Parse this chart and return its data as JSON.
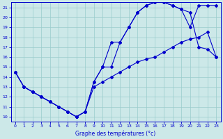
{
  "xlabel": "Graphe des températures (°c)",
  "xlim": [
    -0.5,
    23.5
  ],
  "ylim": [
    9.5,
    21.5
  ],
  "yticks": [
    10,
    11,
    12,
    13,
    14,
    15,
    16,
    17,
    18,
    19,
    20,
    21
  ],
  "xticks": [
    0,
    1,
    2,
    3,
    4,
    5,
    6,
    7,
    8,
    9,
    10,
    11,
    12,
    13,
    14,
    15,
    16,
    17,
    18,
    19,
    20,
    21,
    22,
    23
  ],
  "line_color": "#0000cc",
  "bg_color": "#cce8e8",
  "grid_color": "#99cccc",
  "series": {
    "curve1_x": [
      0,
      1,
      2,
      3,
      4,
      5,
      6,
      7,
      8,
      9,
      10,
      11,
      12,
      13,
      14,
      15,
      16,
      17,
      18,
      19,
      20,
      21,
      22,
      23
    ],
    "curve1_y": [
      14.5,
      13.0,
      12.5,
      12.0,
      11.5,
      11.0,
      10.5,
      10.0,
      10.5,
      13.5,
      15.0,
      17.5,
      17.5,
      19.0,
      20.5,
      21.2,
      21.5,
      21.5,
      21.2,
      20.8,
      19.0,
      21.2,
      21.2,
      21.2
    ],
    "curve2_x": [
      0,
      1,
      2,
      3,
      4,
      5,
      6,
      7,
      8,
      9,
      10,
      11,
      12,
      13,
      14,
      15,
      16,
      17,
      18,
      19,
      20,
      21,
      22,
      23
    ],
    "curve2_y": [
      14.5,
      13.0,
      12.5,
      12.0,
      11.5,
      11.0,
      10.5,
      10.0,
      10.5,
      13.5,
      15.0,
      15.0,
      17.5,
      19.0,
      20.5,
      21.2,
      21.5,
      21.5,
      21.2,
      20.8,
      20.5,
      17.0,
      16.8,
      16.0
    ],
    "curve3_x": [
      0,
      1,
      2,
      3,
      4,
      5,
      6,
      7,
      8,
      9,
      10,
      11,
      12,
      13,
      14,
      15,
      16,
      17,
      18,
      19,
      20,
      21,
      22,
      23
    ],
    "curve3_y": [
      14.5,
      13.0,
      12.5,
      12.0,
      11.5,
      11.0,
      10.5,
      10.0,
      10.5,
      13.0,
      13.5,
      14.0,
      14.5,
      15.0,
      15.5,
      15.8,
      16.0,
      16.5,
      17.0,
      17.5,
      17.8,
      18.0,
      18.5,
      16.0
    ]
  }
}
